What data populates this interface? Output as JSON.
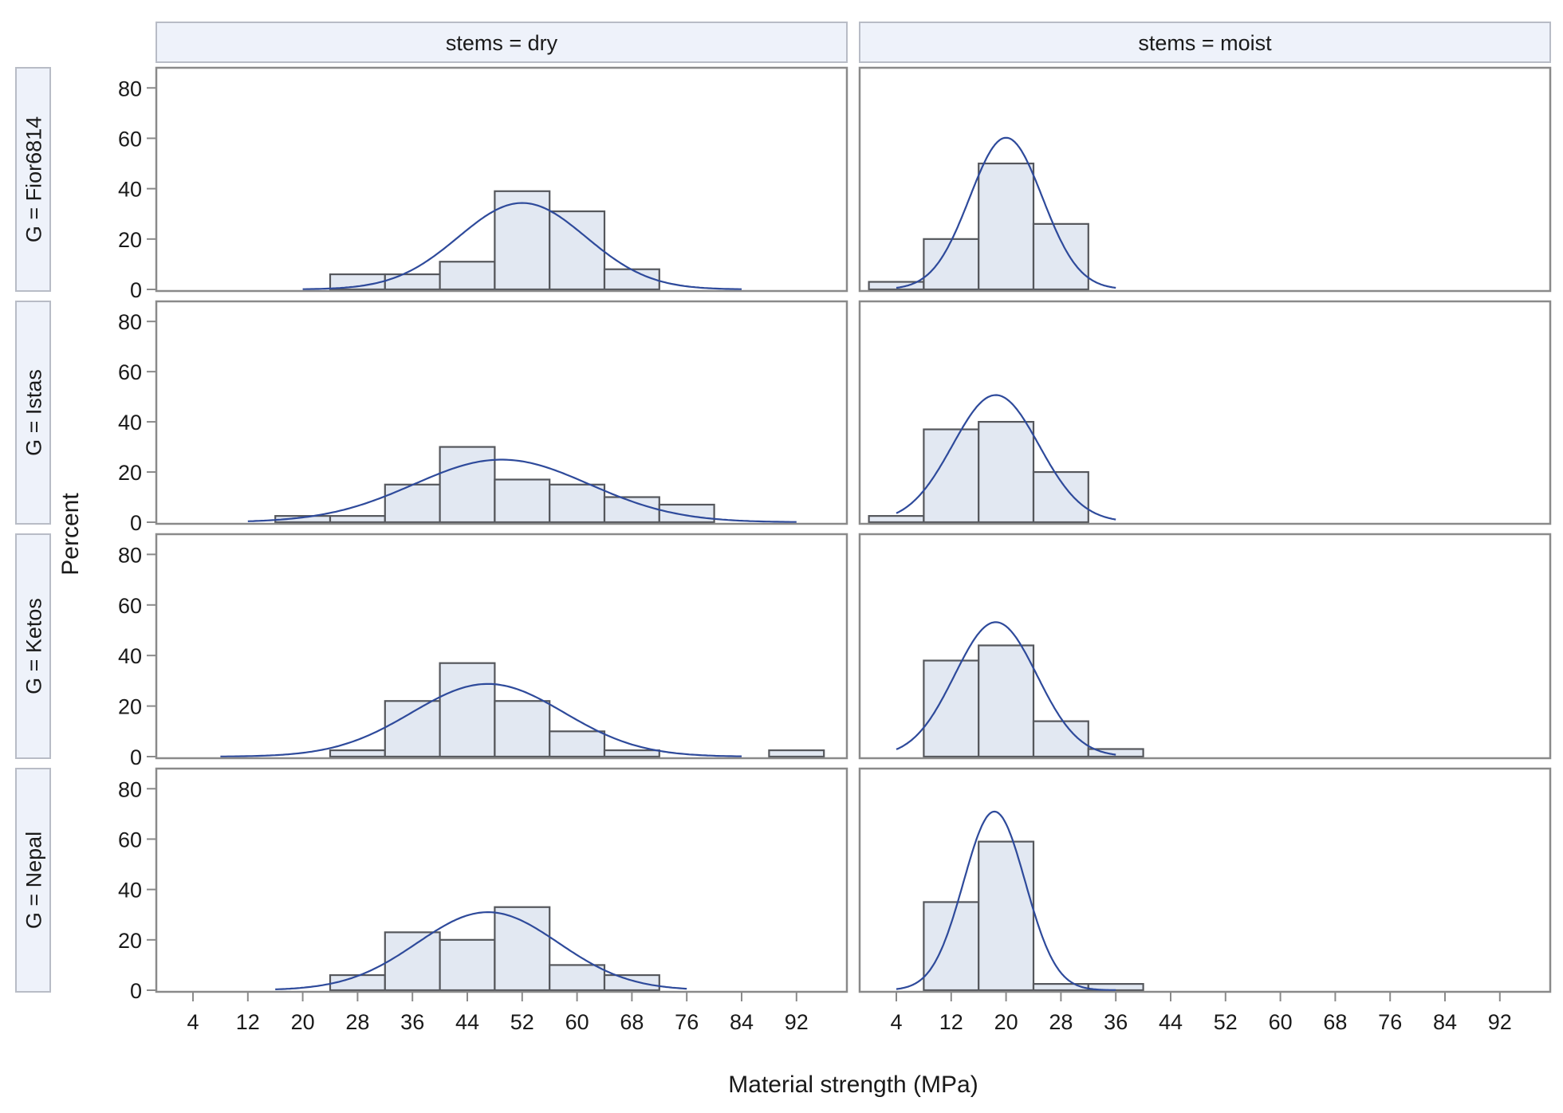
{
  "chart_data": {
    "type": "histogram-panel",
    "xlabel": "Material strength (MPa)",
    "ylabel": "Percent",
    "xlim": [
      -1,
      99
    ],
    "ylim": [
      0,
      88
    ],
    "xticks": [
      4,
      12,
      20,
      28,
      36,
      44,
      52,
      60,
      68,
      76,
      84,
      92
    ],
    "yticks": [
      0,
      20,
      40,
      60,
      80
    ],
    "bin_width": 8,
    "columns": [
      {
        "label": "stems = dry"
      },
      {
        "label": "stems = moist"
      }
    ],
    "rows": [
      {
        "label": "G = Fior6814"
      },
      {
        "label": "G = Istas"
      },
      {
        "label": "G = Ketos"
      },
      {
        "label": "G = Nepal"
      }
    ],
    "panels": [
      {
        "row": "G = Fior6814",
        "column": "stems = dry",
        "bins": [
          {
            "x": 28,
            "y": 6
          },
          {
            "x": 36,
            "y": 6
          },
          {
            "x": 44,
            "y": 11
          },
          {
            "x": 52,
            "y": 39
          },
          {
            "x": 60,
            "y": 31
          },
          {
            "x": 68,
            "y": 8
          }
        ],
        "normal": {
          "mean": 52,
          "sd": 9.3,
          "xmin": 20,
          "xmax": 84
        }
      },
      {
        "row": "G = Fior6814",
        "column": "stems = moist",
        "bins": [
          {
            "x": 4,
            "y": 3
          },
          {
            "x": 12,
            "y": 20
          },
          {
            "x": 20,
            "y": 50
          },
          {
            "x": 28,
            "y": 26
          }
        ],
        "normal": {
          "mean": 20,
          "sd": 5.3,
          "xmin": 4,
          "xmax": 36
        }
      },
      {
        "row": "G = Istas",
        "column": "stems = dry",
        "bins": [
          {
            "x": 20,
            "y": 2.5
          },
          {
            "x": 28,
            "y": 2.5
          },
          {
            "x": 36,
            "y": 15
          },
          {
            "x": 44,
            "y": 30
          },
          {
            "x": 52,
            "y": 17
          },
          {
            "x": 60,
            "y": 15
          },
          {
            "x": 68,
            "y": 10
          },
          {
            "x": 76,
            "y": 7
          }
        ],
        "normal": {
          "mean": 49,
          "sd": 12.8,
          "xmin": 12,
          "xmax": 92
        }
      },
      {
        "row": "G = Istas",
        "column": "stems = moist",
        "bins": [
          {
            "x": 4,
            "y": 2.5
          },
          {
            "x": 12,
            "y": 37
          },
          {
            "x": 20,
            "y": 40
          },
          {
            "x": 28,
            "y": 20
          }
        ],
        "normal": {
          "mean": 18.5,
          "sd": 6.3,
          "xmin": 4,
          "xmax": 36
        }
      },
      {
        "row": "G = Ketos",
        "column": "stems = dry",
        "bins": [
          {
            "x": 28,
            "y": 2.5
          },
          {
            "x": 36,
            "y": 22
          },
          {
            "x": 44,
            "y": 37
          },
          {
            "x": 52,
            "y": 22
          },
          {
            "x": 60,
            "y": 10
          },
          {
            "x": 68,
            "y": 2.5
          },
          {
            "x": 92,
            "y": 2.5
          }
        ],
        "normal": {
          "mean": 47,
          "sd": 11.1,
          "xmin": 8,
          "xmax": 84
        }
      },
      {
        "row": "G = Ketos",
        "column": "stems = moist",
        "bins": [
          {
            "x": 12,
            "y": 38
          },
          {
            "x": 20,
            "y": 44
          },
          {
            "x": 28,
            "y": 14
          },
          {
            "x": 36,
            "y": 3
          }
        ],
        "normal": {
          "mean": 18.5,
          "sd": 6.0,
          "xmin": 4,
          "xmax": 36
        }
      },
      {
        "row": "G = Nepal",
        "column": "stems = dry",
        "bins": [
          {
            "x": 28,
            "y": 6
          },
          {
            "x": 36,
            "y": 23
          },
          {
            "x": 44,
            "y": 20
          },
          {
            "x": 52,
            "y": 33
          },
          {
            "x": 60,
            "y": 10
          },
          {
            "x": 68,
            "y": 6
          }
        ],
        "normal": {
          "mean": 47,
          "sd": 10.3,
          "xmin": 16,
          "xmax": 76
        }
      },
      {
        "row": "G = Nepal",
        "column": "stems = moist",
        "bins": [
          {
            "x": 12,
            "y": 35
          },
          {
            "x": 20,
            "y": 59
          },
          {
            "x": 28,
            "y": 2.5
          },
          {
            "x": 36,
            "y": 2.5
          }
        ],
        "normal": {
          "mean": 18.3,
          "sd": 4.5,
          "xmin": 4,
          "xmax": 36
        }
      }
    ],
    "colors": {
      "bar_fill": "#e2e8f2",
      "bar_stroke": "#55575c",
      "curve": "#2e4a9b",
      "frame": "#8a8a8a",
      "strip_fill": "#eef2fa",
      "strip_stroke": "#b8bcc6",
      "text": "#1a1a1a"
    }
  }
}
